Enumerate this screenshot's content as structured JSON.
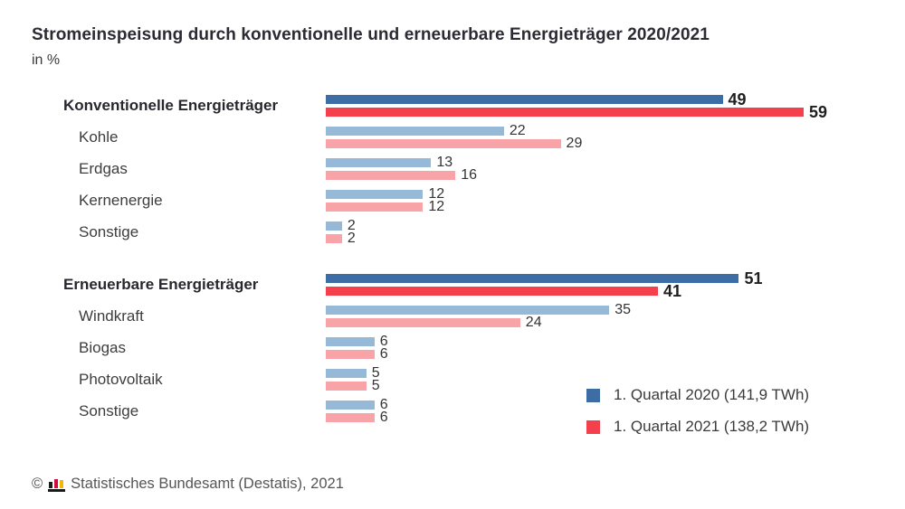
{
  "title": "Stromeinspeisung durch konventionelle und erneuerbare Energieträger 2020/2021",
  "subtitle": "in %",
  "colors": {
    "series_2020_strong": "#3c6ea5",
    "series_2021_strong": "#f43f4d",
    "series_2020_light": "#96b9d8",
    "series_2021_light": "#f8a3a8"
  },
  "legend": [
    {
      "label": "1. Quartal 2020 (141,9 TWh)",
      "color": "#3c6ea5"
    },
    {
      "label": "1. Quartal 2021 (138,2 TWh)",
      "color": "#f43f4d"
    }
  ],
  "footer": {
    "copyright": "©",
    "text": "Statistisches Bundesamt (Destatis), 2021"
  },
  "chart_data": {
    "type": "bar",
    "orientation": "horizontal",
    "unit": "%",
    "xlim": [
      0,
      59
    ],
    "grid": false,
    "legend_position": "bottom-right",
    "series_names": [
      "1. Quartal 2020 (141,9 TWh)",
      "1. Quartal 2021 (138,2 TWh)"
    ],
    "groups": [
      {
        "header": {
          "label": "Konventionelle Energieträger",
          "values": [
            49,
            59
          ]
        },
        "items": [
          {
            "label": "Kohle",
            "values": [
              22,
              29
            ]
          },
          {
            "label": "Erdgas",
            "values": [
              13,
              16
            ]
          },
          {
            "label": "Kernenergie",
            "values": [
              12,
              12
            ]
          },
          {
            "label": "Sonstige",
            "values": [
              2,
              2
            ]
          }
        ]
      },
      {
        "header": {
          "label": "Erneuerbare Energieträger",
          "values": [
            51,
            41
          ]
        },
        "items": [
          {
            "label": "Windkraft",
            "values": [
              35,
              24
            ]
          },
          {
            "label": "Biogas",
            "values": [
              6,
              6
            ]
          },
          {
            "label": "Photovoltaik",
            "values": [
              5,
              5
            ]
          },
          {
            "label": "Sonstige",
            "values": [
              6,
              6
            ]
          }
        ]
      }
    ]
  }
}
